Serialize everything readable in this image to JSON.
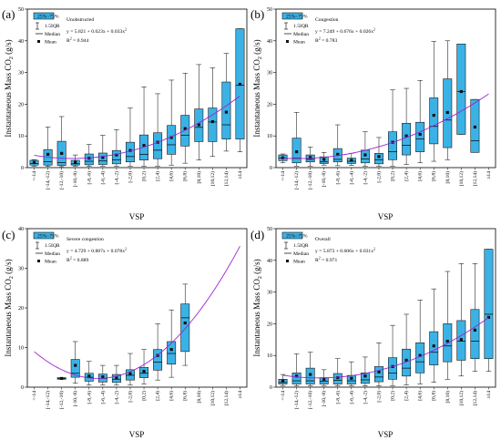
{
  "figure": {
    "shared_x_label": "VSP",
    "shared_y_label": "Instantaneous Mass CO",
    "y_label_sub": "2",
    "y_label_unit": " (g/s)",
    "categories": [
      "<-14",
      "[-14,-12)",
      "[-12,-10)",
      "[-10,-8)",
      "[-8,-6)",
      "[-6,-4)",
      "[-4,-2)",
      "[-2,0)",
      "[0,2)",
      "[2,4)",
      "[4,6)",
      "[6,8)",
      "[8,10)",
      "[10,12)",
      "[12,14)",
      "≥14"
    ],
    "legend": {
      "box": "25%~75%",
      "whisker": "1.5IQR",
      "median": "Median",
      "mean": "Mean"
    },
    "colors": {
      "box_fill": "#3bb2e6",
      "box_stroke": "#1a1a1a",
      "mean_marker": "#111111",
      "fit_curve": "#9a26d6"
    }
  },
  "chart_data": [
    {
      "type": "box",
      "panel": "(a)",
      "condition": "Unobstructed",
      "equation": "y = 5.821 + 0.623x + 0.033x",
      "r2": "R",
      "r2_value": " = 0.944",
      "ylim": [
        0,
        50
      ],
      "yticks": [
        0,
        10,
        20,
        30,
        40,
        50
      ],
      "fit": {
        "a": 5.821,
        "b": 0.623,
        "c": 0.033
      },
      "boxes": [
        {
          "q1": 0.8,
          "median": 1.3,
          "q3": 2.3,
          "low": 0.5,
          "high": 2.5,
          "mean": 1.6
        },
        {
          "q1": 0.8,
          "median": 1.9,
          "q3": 5.7,
          "low": 0.4,
          "high": 12.8,
          "mean": 4.2
        },
        {
          "q1": 0.7,
          "median": 1.6,
          "q3": 8.3,
          "low": 0.3,
          "high": 16.1,
          "mean": 4.5
        },
        {
          "q1": 0.8,
          "median": 1.2,
          "q3": 2.3,
          "low": 0.5,
          "high": 4.0,
          "mean": 1.7
        },
        {
          "q1": 0.9,
          "median": 2.0,
          "q3": 4.3,
          "low": 0.4,
          "high": 7.3,
          "mean": 3.0
        },
        {
          "q1": 1.0,
          "median": 2.1,
          "q3": 4.6,
          "low": 0.5,
          "high": 10.2,
          "mean": 3.2
        },
        {
          "q1": 1.2,
          "median": 2.5,
          "q3": 5.4,
          "low": 0.5,
          "high": 12.0,
          "mean": 4.0
        },
        {
          "q1": 1.8,
          "median": 3.5,
          "q3": 8.0,
          "low": 0.5,
          "high": 18.8,
          "mean": 5.4
        },
        {
          "q1": 2.4,
          "median": 4.2,
          "q3": 10.3,
          "low": 0.5,
          "high": 25.5,
          "mean": 7.0
        },
        {
          "q1": 2.8,
          "median": 5.5,
          "q3": 11.0,
          "low": 0.5,
          "high": 23.3,
          "mean": 8.0
        },
        {
          "q1": 4.2,
          "median": 7.2,
          "q3": 13.3,
          "low": 0.8,
          "high": 27.6,
          "mean": 9.5
        },
        {
          "q1": 6.8,
          "median": 10.2,
          "q3": 16.5,
          "low": 1.4,
          "high": 29.8,
          "mean": 12.3
        },
        {
          "q1": 8.2,
          "median": 12.7,
          "q3": 18.5,
          "low": 2.4,
          "high": 32.5,
          "mean": 13.5
        },
        {
          "q1": 8.2,
          "median": 14.4,
          "q3": 18.8,
          "low": 3.5,
          "high": 31.5,
          "mean": 14.5
        },
        {
          "q1": 9.0,
          "median": 13.5,
          "q3": 27.0,
          "low": 5.2,
          "high": 36.0,
          "mean": 17.5
        },
        {
          "q1": 9.0,
          "median": 26.0,
          "q3": 43.8,
          "low": 5.0,
          "high": 43.8,
          "mean": 26.3
        }
      ]
    },
    {
      "type": "box",
      "panel": "(b)",
      "condition": "Congestion",
      "equation": "y = 7.249 + 0.676x + 0.026x",
      "r2": "R",
      "r2_value": " = 0.783",
      "ylim": [
        0,
        50
      ],
      "yticks": [
        0,
        10,
        20,
        30,
        40,
        50
      ],
      "fit": {
        "a": 7.249,
        "b": 0.676,
        "c": 0.026
      },
      "boxes": [
        {
          "q1": 2.2,
          "median": 3.0,
          "q3": 4.0,
          "low": 1.5,
          "high": 4.3,
          "mean": 3.1
        },
        {
          "q1": 1.5,
          "median": 3.0,
          "q3": 9.3,
          "low": 0.5,
          "high": 17.4,
          "mean": 5.0
        },
        {
          "q1": 1.8,
          "median": 2.6,
          "q3": 4.0,
          "low": 0.5,
          "high": 6.5,
          "mean": 3.2
        },
        {
          "q1": 1.3,
          "median": 1.8,
          "q3": 3.4,
          "low": 0.8,
          "high": 4.8,
          "mean": 2.6
        },
        {
          "q1": 1.8,
          "median": 2.6,
          "q3": 6.0,
          "low": 0.6,
          "high": 13.5,
          "mean": 4.2
        },
        {
          "q1": 1.3,
          "median": 2.0,
          "q3": 3.0,
          "low": 0.7,
          "high": 4.5,
          "mean": 2.3
        },
        {
          "q1": 1.5,
          "median": 2.7,
          "q3": 5.5,
          "low": 0.5,
          "high": 11.3,
          "mean": 4.0
        },
        {
          "q1": 1.2,
          "median": 2.5,
          "q3": 4.5,
          "low": 0.5,
          "high": 9.5,
          "mean": 3.5
        },
        {
          "q1": 2.5,
          "median": 5.0,
          "q3": 11.3,
          "low": 0.5,
          "high": 24.5,
          "mean": 8.0
        },
        {
          "q1": 4.0,
          "median": 7.0,
          "q3": 14.0,
          "low": 1.0,
          "high": 25.0,
          "mean": 10.0
        },
        {
          "q1": 5.0,
          "median": 9.0,
          "q3": 14.3,
          "low": 1.5,
          "high": 27.5,
          "mean": 10.5
        },
        {
          "q1": 7.5,
          "median": 13.0,
          "q3": 22.0,
          "low": 2.0,
          "high": 39.8,
          "mean": 16.5
        },
        {
          "q1": 6.3,
          "median": 15.0,
          "q3": 28.0,
          "low": 2.5,
          "high": 40.0,
          "mean": 17.4
        },
        {
          "q1": 10.5,
          "median": 24.0,
          "q3": 39.0,
          "low": 10.5,
          "high": 39.0,
          "mean": 24.0
        },
        {
          "q1": 4.8,
          "median": 8.5,
          "q3": 21.5,
          "low": 4.8,
          "high": 21.5,
          "mean": 12.8
        }
      ]
    },
    {
      "type": "box",
      "panel": "(c)",
      "condition": "Severe congestion",
      "equation": "y = 4.729 + 0.887x + 0.078x",
      "r2": "R",
      "r2_value": " = 0.889",
      "ylim": [
        0,
        40
      ],
      "yticks": [
        0,
        10,
        20,
        30,
        40
      ],
      "fit": {
        "a": 4.729,
        "b": 0.887,
        "c": 0.078
      },
      "boxes": [
        null,
        null,
        {
          "q1": 2.0,
          "median": 2.2,
          "q3": 2.4,
          "low": 2.0,
          "high": 2.4,
          "mean": 2.2
        },
        {
          "q1": 2.5,
          "median": 3.5,
          "q3": 7.0,
          "low": 1.0,
          "high": 11.5,
          "mean": 5.5
        },
        {
          "q1": 1.5,
          "median": 2.5,
          "q3": 3.5,
          "low": 0.5,
          "high": 6.5,
          "mean": 2.8
        },
        {
          "q1": 1.3,
          "median": 2.2,
          "q3": 3.3,
          "low": 0.5,
          "high": 5.5,
          "mean": 2.6
        },
        {
          "q1": 1.2,
          "median": 2.0,
          "q3": 3.2,
          "low": 0.5,
          "high": 5.5,
          "mean": 2.3
        },
        {
          "q1": 1.8,
          "median": 3.0,
          "q3": 4.4,
          "low": 0.5,
          "high": 8.5,
          "mean": 3.4
        },
        {
          "q1": 2.4,
          "median": 3.5,
          "q3": 5.0,
          "low": 0.8,
          "high": 9.5,
          "mean": 4.0
        },
        {
          "q1": 4.3,
          "median": 6.3,
          "q3": 9.5,
          "low": 1.8,
          "high": 16.0,
          "mean": 8.0
        },
        {
          "q1": 5.8,
          "median": 8.5,
          "q3": 11.5,
          "low": 2.5,
          "high": 19.5,
          "mean": 9.5
        },
        {
          "q1": 9.0,
          "median": 17.5,
          "q3": 21.0,
          "low": 5.5,
          "high": 26.0,
          "mean": 16.2
        }
      ]
    },
    {
      "type": "box",
      "panel": "(d)",
      "condition": "Overall",
      "equation": "y = 5.873 + 0.606x + 0.031x",
      "r2": "R",
      "r2_value": " = 0.971",
      "ylim": [
        0,
        50
      ],
      "yticks": [
        0,
        10,
        20,
        30,
        40,
        50
      ],
      "fit": {
        "a": 5.873,
        "b": 0.606,
        "c": 0.031
      },
      "boxes": [
        {
          "q1": 1.0,
          "median": 1.5,
          "q3": 2.5,
          "low": 0.5,
          "high": 4.0,
          "mean": 1.9
        },
        {
          "q1": 1.0,
          "median": 2.0,
          "q3": 4.5,
          "low": 0.4,
          "high": 10.5,
          "mean": 3.5
        },
        {
          "q1": 1.0,
          "median": 2.0,
          "q3": 6.0,
          "low": 0.4,
          "high": 11.0,
          "mean": 4.0
        },
        {
          "q1": 1.0,
          "median": 1.8,
          "q3": 3.0,
          "low": 0.5,
          "high": 5.5,
          "mean": 2.5
        },
        {
          "q1": 1.0,
          "median": 2.2,
          "q3": 4.3,
          "low": 0.4,
          "high": 9.0,
          "mean": 3.0
        },
        {
          "q1": 1.0,
          "median": 2.0,
          "q3": 3.7,
          "low": 0.4,
          "high": 8.0,
          "mean": 2.8
        },
        {
          "q1": 1.2,
          "median": 2.3,
          "q3": 4.5,
          "low": 0.4,
          "high": 9.5,
          "mean": 3.5
        },
        {
          "q1": 1.7,
          "median": 3.2,
          "q3": 6.5,
          "low": 0.4,
          "high": 14.0,
          "mean": 4.8
        },
        {
          "q1": 2.5,
          "median": 4.5,
          "q3": 9.3,
          "low": 0.5,
          "high": 19.5,
          "mean": 6.5
        },
        {
          "q1": 3.5,
          "median": 6.0,
          "q3": 12.0,
          "low": 0.7,
          "high": 23.0,
          "mean": 8.5
        },
        {
          "q1": 4.5,
          "median": 8.0,
          "q3": 14.0,
          "low": 1.0,
          "high": 27.5,
          "mean": 10.0
        },
        {
          "q1": 7.0,
          "median": 11.0,
          "q3": 17.5,
          "low": 1.5,
          "high": 31.0,
          "mean": 13.0
        },
        {
          "q1": 8.0,
          "median": 13.0,
          "q3": 20.0,
          "low": 2.5,
          "high": 36.5,
          "mean": 14.5
        },
        {
          "q1": 8.5,
          "median": 14.5,
          "q3": 21.0,
          "low": 3.5,
          "high": 39.0,
          "mean": 15.0
        },
        {
          "q1": 9.0,
          "median": 14.5,
          "q3": 24.5,
          "low": 5.0,
          "high": 39.0,
          "mean": 18.0
        },
        {
          "q1": 9.0,
          "median": 23.0,
          "q3": 43.5,
          "low": 5.0,
          "high": 43.5,
          "mean": 22.0
        }
      ]
    }
  ]
}
